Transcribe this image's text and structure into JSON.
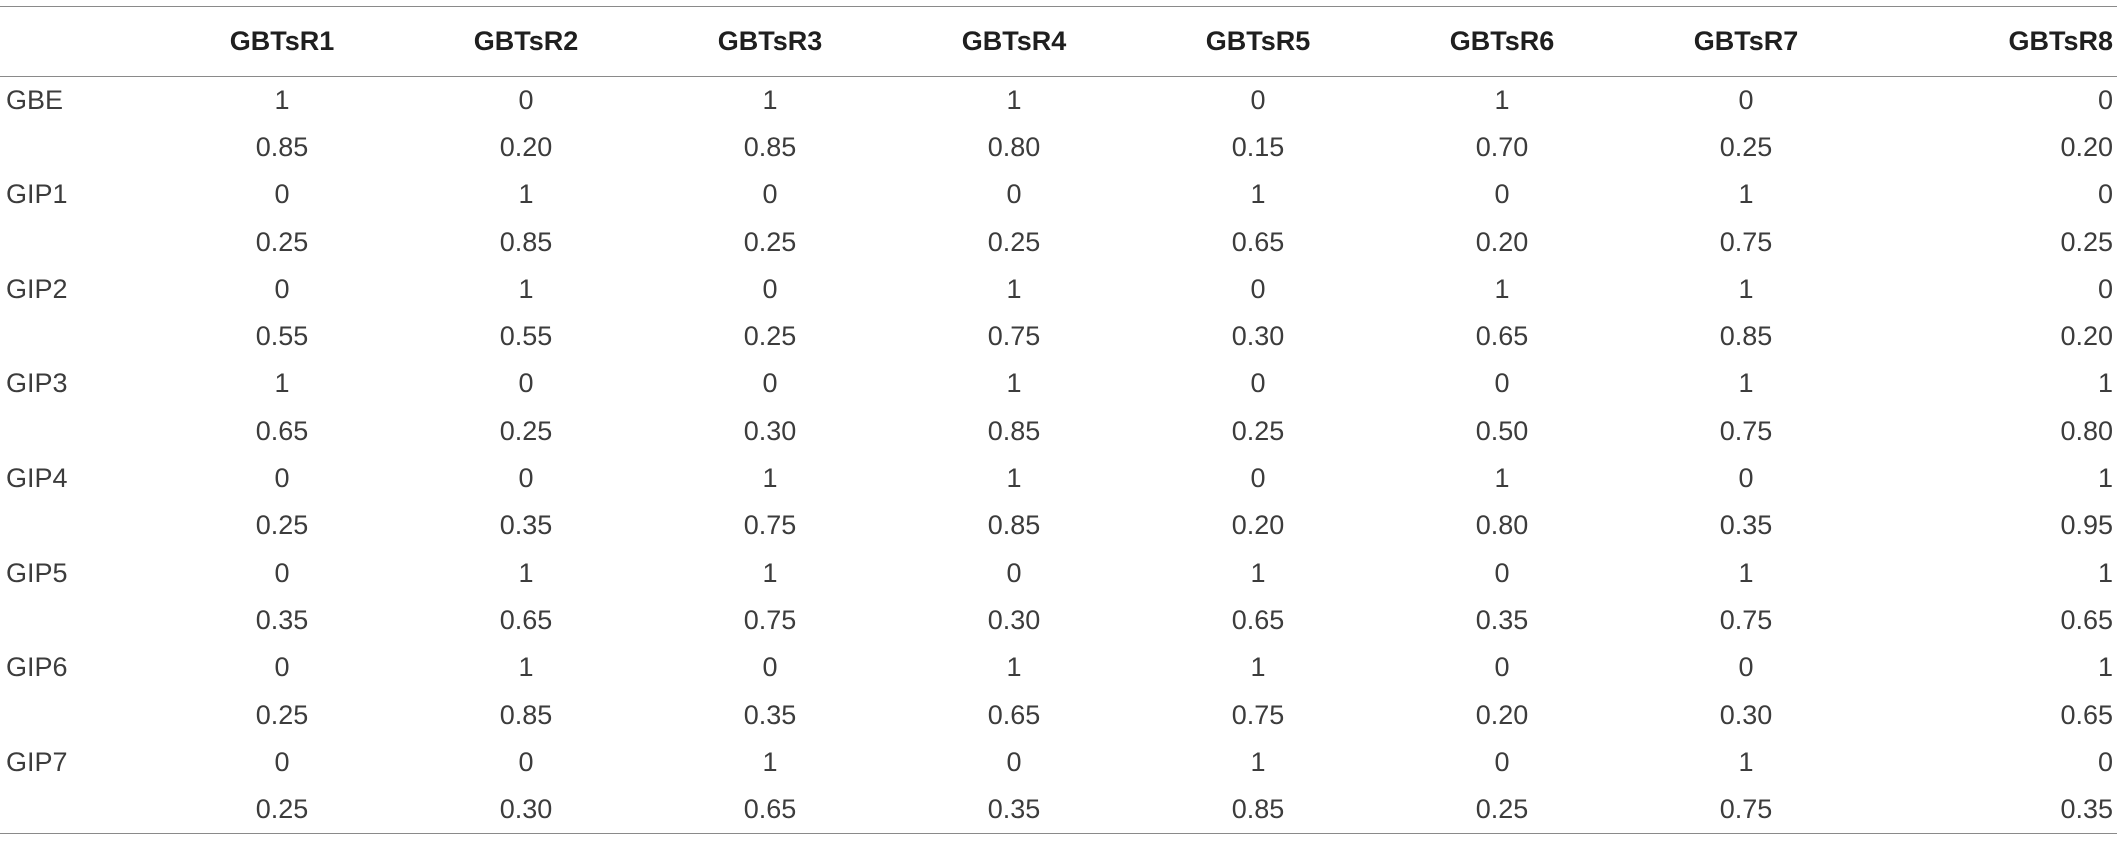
{
  "table": {
    "columns": [
      "",
      "GBTsR1",
      "GBTsR2",
      "GBTsR3",
      "GBTsR4",
      "GBTsR5",
      "GBTsR6",
      "GBTsR7",
      "GBTsR8"
    ],
    "rows": [
      {
        "label": "GBE",
        "binary": [
          "1",
          "0",
          "1",
          "1",
          "0",
          "1",
          "0",
          "0"
        ],
        "scores": [
          "0.85",
          "0.20",
          "0.85",
          "0.80",
          "0.15",
          "0.70",
          "0.25",
          "0.20"
        ]
      },
      {
        "label": "GIP1",
        "binary": [
          "0",
          "1",
          "0",
          "0",
          "1",
          "0",
          "1",
          "0"
        ],
        "scores": [
          "0.25",
          "0.85",
          "0.25",
          "0.25",
          "0.65",
          "0.20",
          "0.75",
          "0.25"
        ]
      },
      {
        "label": "GIP2",
        "binary": [
          "0",
          "1",
          "0",
          "1",
          "0",
          "1",
          "1",
          "0"
        ],
        "scores": [
          "0.55",
          "0.55",
          "0.25",
          "0.75",
          "0.30",
          "0.65",
          "0.85",
          "0.20"
        ]
      },
      {
        "label": "GIP3",
        "binary": [
          "1",
          "0",
          "0",
          "1",
          "0",
          "0",
          "1",
          "1"
        ],
        "scores": [
          "0.65",
          "0.25",
          "0.30",
          "0.85",
          "0.25",
          "0.50",
          "0.75",
          "0.80"
        ]
      },
      {
        "label": "GIP4",
        "binary": [
          "0",
          "0",
          "1",
          "1",
          "0",
          "1",
          "0",
          "1"
        ],
        "scores": [
          "0.25",
          "0.35",
          "0.75",
          "0.85",
          "0.20",
          "0.80",
          "0.35",
          "0.95"
        ]
      },
      {
        "label": "GIP5",
        "binary": [
          "0",
          "1",
          "1",
          "0",
          "1",
          "0",
          "1",
          "1"
        ],
        "scores": [
          "0.35",
          "0.65",
          "0.75",
          "0.30",
          "0.65",
          "0.35",
          "0.75",
          "0.65"
        ]
      },
      {
        "label": "GIP6",
        "binary": [
          "0",
          "1",
          "0",
          "1",
          "1",
          "0",
          "0",
          "1"
        ],
        "scores": [
          "0.25",
          "0.85",
          "0.35",
          "0.65",
          "0.75",
          "0.20",
          "0.30",
          "0.65"
        ]
      },
      {
        "label": "GIP7",
        "binary": [
          "0",
          "0",
          "1",
          "0",
          "1",
          "0",
          "1",
          "0"
        ],
        "scores": [
          "0.25",
          "0.30",
          "0.65",
          "0.35",
          "0.85",
          "0.25",
          "0.75",
          "0.35"
        ]
      }
    ]
  },
  "colors": {
    "rule": "#8a8a8a",
    "text": "#3c3c3c",
    "header_text": "#1f1f1f"
  }
}
